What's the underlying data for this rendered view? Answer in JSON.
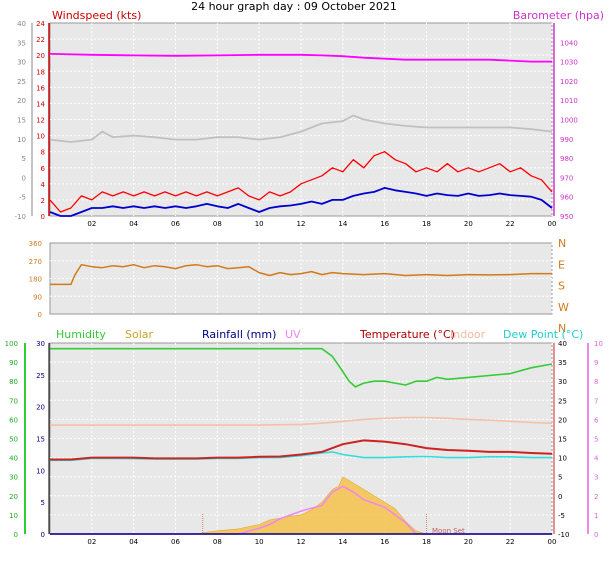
{
  "page": {
    "title": "24 hour graph day : 09 October 2021"
  },
  "x_ticks": [
    "02",
    "04",
    "06",
    "08",
    "10",
    "12",
    "14",
    "16",
    "18",
    "20",
    "22",
    "00"
  ],
  "x_range": [
    0,
    24
  ],
  "colors": {
    "wind_gust": "#ff0000",
    "wind_avg": "#0000cc",
    "barometer": "#ff00ff",
    "wind_gray": "#c0c0c0",
    "direction": "#d07a1a",
    "humidity": "#33cc33",
    "solar": "#f5c24a",
    "rainfall": "#000080",
    "uv": "#ee88ee",
    "temperature": "#cc2222",
    "indoor": "#f4c0a8",
    "dew_point": "#33dddd",
    "plot_bg": "#e8e8e8",
    "grid": "#ffffff"
  },
  "chart_data": [
    {
      "id": "wind",
      "type": "line",
      "title": "",
      "ylabel": "Windspeed (kts)",
      "ylabel_right": "Barometer (hpa)",
      "left_ticks": [
        "-10",
        "-5",
        "0",
        "5",
        "10",
        "15",
        "20",
        "25",
        "30",
        "35",
        "40"
      ],
      "left_ticks_inner": [
        "0",
        "2",
        "4",
        "6",
        "8",
        "10",
        "12",
        "14",
        "16",
        "18",
        "20",
        "22",
        "24"
      ],
      "right_ticks": [
        "950",
        "960",
        "970",
        "980",
        "990",
        "1000",
        "1010",
        "1020",
        "1030",
        "1040"
      ],
      "ylim_left": [
        0,
        24
      ],
      "ylim_right": [
        950,
        1050
      ],
      "grid": true,
      "series": [
        {
          "name": "Windspeed (kts)",
          "key": "gust",
          "color_key": "wind_gust",
          "x": [
            0,
            0.5,
            1,
            1.5,
            2,
            2.5,
            3,
            3.5,
            4,
            4.5,
            5,
            5.5,
            6,
            6.5,
            7,
            7.5,
            8,
            8.5,
            9,
            9.5,
            10,
            10.5,
            11,
            11.5,
            12,
            12.5,
            13,
            13.5,
            14,
            14.5,
            15,
            15.5,
            16,
            16.5,
            17,
            17.5,
            18,
            18.5,
            19,
            19.5,
            20,
            20.5,
            21,
            21.5,
            22,
            22.5,
            23,
            23.5,
            24
          ],
          "values": [
            2,
            0.5,
            1,
            2.5,
            2,
            3,
            2.5,
            3,
            2.5,
            3,
            2.5,
            3,
            2.5,
            3,
            2.5,
            3,
            2.5,
            3,
            3.5,
            2.5,
            2,
            3,
            2.5,
            3,
            4,
            4.5,
            5,
            6,
            5.5,
            7,
            6,
            7.5,
            8,
            7,
            6.5,
            5.5,
            6,
            5.5,
            6.5,
            5.5,
            6,
            5.5,
            6,
            6.5,
            5.5,
            6,
            5,
            4.5,
            3
          ]
        },
        {
          "name": "",
          "key": "avg",
          "color_key": "wind_avg",
          "x": [
            0,
            0.5,
            1,
            1.5,
            2,
            2.5,
            3,
            3.5,
            4,
            4.5,
            5,
            5.5,
            6,
            6.5,
            7,
            7.5,
            8,
            8.5,
            9,
            9.5,
            10,
            10.5,
            11,
            11.5,
            12,
            12.5,
            13,
            13.5,
            14,
            14.5,
            15,
            15.5,
            16,
            16.5,
            17,
            17.5,
            18,
            18.5,
            19,
            19.5,
            20,
            20.5,
            21,
            21.5,
            22,
            22.5,
            23,
            23.5,
            24
          ],
          "values": [
            0.5,
            0,
            0,
            0.5,
            1,
            1,
            1.2,
            1,
            1.2,
            1,
            1.2,
            1,
            1.2,
            1,
            1.2,
            1.5,
            1.2,
            1,
            1.5,
            1,
            0.5,
            1,
            1.2,
            1.3,
            1.5,
            1.8,
            1.5,
            2,
            2,
            2.5,
            2.8,
            3,
            3.5,
            3.2,
            3,
            2.8,
            2.5,
            2.8,
            2.6,
            2.5,
            2.8,
            2.5,
            2.6,
            2.8,
            2.6,
            2.5,
            2.4,
            2,
            1
          ]
        },
        {
          "name": "",
          "key": "gray",
          "color_key": "wind_gray",
          "x": [
            0,
            1,
            2,
            2.5,
            3,
            4,
            5,
            6,
            7,
            8,
            9,
            10,
            11,
            12,
            12.5,
            13,
            14,
            14.5,
            15,
            16,
            17,
            18,
            19,
            20,
            21,
            22,
            23,
            24
          ],
          "values": [
            9.5,
            9.2,
            9.5,
            10.5,
            9.8,
            10,
            9.8,
            9.5,
            9.5,
            9.8,
            9.8,
            9.5,
            9.8,
            10.5,
            11,
            11.5,
            11.8,
            12.5,
            12,
            11.5,
            11.2,
            11,
            11,
            11,
            11,
            11,
            10.8,
            10.5
          ]
        },
        {
          "name": "Barometer (hpa)",
          "key": "baro",
          "color_key": "barometer",
          "axis": "right",
          "x": [
            0,
            2,
            4,
            6,
            8,
            10,
            12,
            13,
            14,
            15,
            16,
            17,
            18,
            19,
            20,
            21,
            22,
            23,
            24
          ],
          "values": [
            1034,
            1033.5,
            1033.2,
            1033,
            1033.2,
            1033.5,
            1033.5,
            1033.2,
            1032.8,
            1032,
            1031.5,
            1031,
            1031,
            1031,
            1031,
            1031,
            1030.5,
            1030,
            1030
          ]
        }
      ]
    },
    {
      "id": "direction",
      "type": "line",
      "title": "",
      "left_ticks": [
        "0",
        "90",
        "180",
        "270",
        "360"
      ],
      "right_labels": [
        "N",
        "W",
        "S",
        "E",
        "N"
      ],
      "ylim": [
        0,
        360
      ],
      "grid": true,
      "series": [
        {
          "name": "",
          "color_key": "direction",
          "x": [
            0,
            0.5,
            1,
            1.2,
            1.5,
            2,
            2.5,
            3,
            3.5,
            4,
            4.5,
            5,
            5.5,
            6,
            6.5,
            7,
            7.5,
            8,
            8.5,
            9,
            9.5,
            10,
            10.5,
            11,
            11.5,
            12,
            12.5,
            13,
            13.5,
            14,
            15,
            16,
            17,
            18,
            19,
            20,
            21,
            22,
            23,
            24
          ],
          "values": [
            150,
            150,
            150,
            200,
            250,
            240,
            235,
            245,
            240,
            250,
            235,
            245,
            240,
            230,
            245,
            250,
            240,
            245,
            230,
            235,
            240,
            210,
            195,
            210,
            200,
            205,
            215,
            200,
            210,
            205,
            200,
            205,
            195,
            200,
            195,
            200,
            198,
            200,
            205,
            205
          ]
        }
      ]
    },
    {
      "id": "temp",
      "type": "line",
      "title": "",
      "legend": [
        "Humidity",
        "Solar",
        "Rainfall (mm)",
        "UV",
        "Temperature (°C)",
        "Indoor",
        "Dew Point (°C)"
      ],
      "axis1_ticks": [
        "0",
        "10",
        "20",
        "30",
        "40",
        "50",
        "60",
        "70",
        "80",
        "90",
        "100"
      ],
      "axis2_ticks": [
        "0",
        "5",
        "10",
        "15",
        "20",
        "25",
        "30"
      ],
      "right1_ticks": [
        "-10",
        "-5",
        "0",
        "5",
        "10",
        "15",
        "20",
        "25",
        "30",
        "35",
        "40"
      ],
      "right2_ticks": [
        "0",
        "1",
        "2",
        "3",
        "4",
        "5",
        "6",
        "7",
        "8",
        "9",
        "10"
      ],
      "ylim_temp": [
        -10,
        40
      ],
      "ylim_hum": [
        0,
        100
      ],
      "ylim_solar": [
        0,
        30
      ],
      "grid": true,
      "annotations": [
        "Moon Set"
      ],
      "series": [
        {
          "name": "Humidity",
          "color_key": "humidity",
          "axis": "hum",
          "x": [
            0,
            0.5,
            1,
            2,
            3,
            4,
            5,
            6,
            7,
            8,
            9,
            10,
            11,
            12,
            13,
            13.5,
            14,
            14.3,
            14.6,
            15,
            15.5,
            16,
            16.5,
            17,
            17.5,
            18,
            18.5,
            19,
            20,
            21,
            22,
            23,
            24
          ],
          "values": [
            97,
            97,
            97,
            97,
            97,
            97,
            97,
            97,
            97,
            97,
            97,
            97,
            97,
            97,
            97,
            93,
            85,
            80,
            77,
            79,
            80,
            80,
            79,
            78,
            80,
            80,
            82,
            81,
            82,
            83,
            84,
            87,
            89
          ]
        },
        {
          "name": "Temperature (°C)",
          "color_key": "temperature",
          "axis": "temp",
          "x": [
            0,
            1,
            2,
            3,
            4,
            5,
            6,
            7,
            8,
            9,
            10,
            11,
            12,
            13,
            14,
            15,
            16,
            17,
            18,
            19,
            20,
            21,
            22,
            23,
            24
          ],
          "values": [
            9.5,
            9.5,
            10,
            10,
            10,
            9.8,
            9.8,
            9.8,
            10,
            10,
            10.2,
            10.3,
            10.8,
            11.5,
            13.5,
            14.5,
            14.2,
            13.5,
            12.5,
            12,
            11.8,
            11.5,
            11.5,
            11.2,
            11
          ]
        },
        {
          "name": "Dew Point (°C)",
          "color_key": "dew_point",
          "axis": "temp",
          "x": [
            0,
            1,
            2,
            3,
            4,
            5,
            6,
            7,
            8,
            9,
            10,
            11,
            12,
            13,
            13.5,
            14,
            15,
            16,
            17,
            18,
            19,
            20,
            21,
            22,
            23,
            24
          ],
          "values": [
            9.3,
            9.3,
            9.8,
            9.8,
            9.7,
            9.6,
            9.6,
            9.6,
            9.8,
            9.8,
            10,
            10,
            10.5,
            11.2,
            11.5,
            10.8,
            10,
            10,
            10.2,
            10.3,
            10,
            10,
            10.2,
            10.2,
            10,
            10
          ]
        },
        {
          "name": "Indoor",
          "color_key": "indoor",
          "axis": "temp",
          "x": [
            0,
            2,
            4,
            6,
            8,
            10,
            12,
            13,
            14,
            15,
            16,
            17,
            18,
            19,
            20,
            21,
            22,
            23,
            24
          ],
          "values": [
            18.5,
            18.5,
            18.5,
            18.5,
            18.5,
            18.5,
            18.7,
            19,
            19.5,
            20,
            20.3,
            20.5,
            20.5,
            20.3,
            20,
            19.8,
            19.5,
            19.2,
            19
          ]
        },
        {
          "name": "Solar",
          "color_key": "solar",
          "axis": "solar",
          "type": "area",
          "x": [
            0,
            7,
            7.5,
            8,
            9,
            10,
            10.5,
            11,
            11.5,
            12,
            12.5,
            13,
            13.5,
            13.8,
            14,
            14.5,
            15,
            15.5,
            16,
            16.5,
            17,
            17.5,
            18,
            24
          ],
          "values": [
            0,
            0,
            0.3,
            0.5,
            0.8,
            1.5,
            2.2,
            2.5,
            2.8,
            3,
            3.8,
            5,
            7,
            7.5,
            9,
            8,
            7,
            6,
            5,
            4,
            2,
            0.5,
            0,
            0
          ]
        },
        {
          "name": "UV",
          "color_key": "uv",
          "axis": "uv",
          "x": [
            0,
            9,
            10,
            10.5,
            11,
            12,
            13,
            13.5,
            14,
            14.5,
            15,
            15.5,
            16,
            16.5,
            17,
            17.5,
            24
          ],
          "values": [
            0,
            0,
            0.3,
            0.5,
            0.8,
            1.2,
            1.5,
            2.2,
            2.5,
            2.2,
            1.8,
            1.6,
            1.4,
            1,
            0.6,
            0,
            0
          ]
        },
        {
          "name": "Rainfall (mm)",
          "color_key": "rainfall",
          "axis": "solar",
          "x": [
            0,
            24
          ],
          "values": [
            0,
            0
          ]
        }
      ]
    }
  ]
}
